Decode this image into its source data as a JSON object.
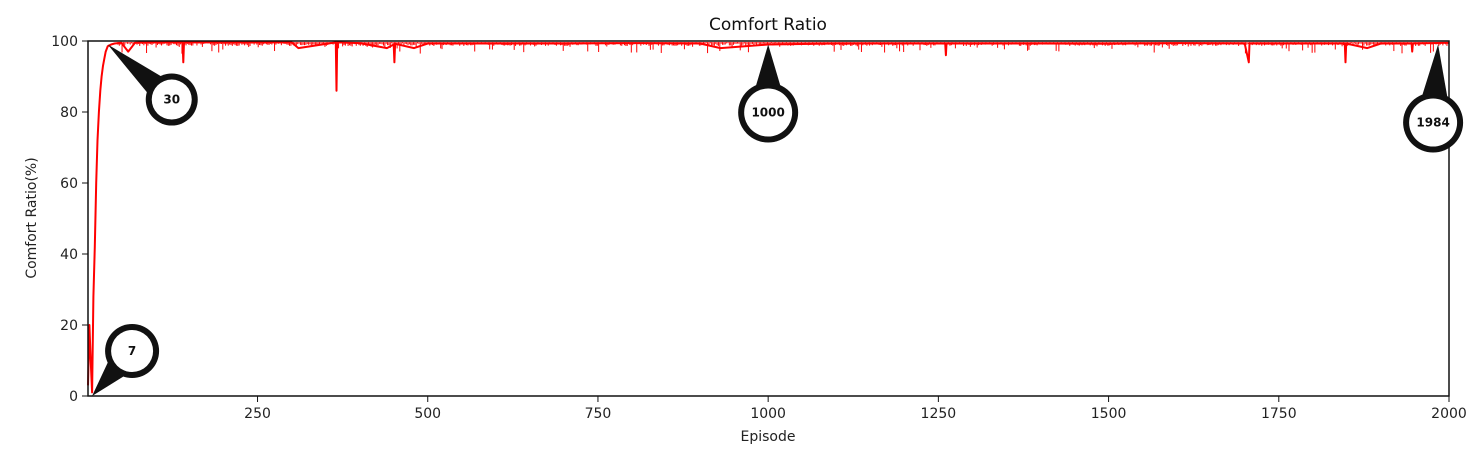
{
  "chart_data": {
    "type": "line",
    "title": "Comfort Ratio",
    "xlabel": "Episode",
    "ylabel": "Comfort Ratio(%)",
    "xlim": [
      1,
      2000
    ],
    "ylim": [
      0,
      100
    ],
    "xticks": [
      250,
      500,
      750,
      1000,
      1250,
      1500,
      1750,
      2000
    ],
    "yticks": [
      0,
      20,
      40,
      60,
      80,
      100
    ],
    "grid": false,
    "colors": {
      "series": "#ff0000",
      "marker": "#111111"
    },
    "series": [
      {
        "name": "",
        "x": [
          1,
          3,
          5,
          7,
          9,
          11,
          13,
          15,
          17,
          19,
          21,
          23,
          25,
          27,
          30,
          35,
          40,
          50,
          60,
          70,
          80,
          90,
          100,
          140,
          141,
          142,
          200,
          300,
          310,
          365,
          366,
          367,
          400,
          440,
          450,
          451,
          452,
          480,
          500,
          600,
          700,
          800,
          900,
          930,
          1000,
          1100,
          1200,
          1260,
          1261,
          1262,
          1300,
          1400,
          1500,
          1600,
          1700,
          1706,
          1707,
          1708,
          1800,
          1847,
          1848,
          1849,
          1880,
          1900,
          1945,
          1946,
          1947,
          2000
        ],
        "y": [
          3,
          20,
          10,
          1,
          28,
          42,
          60,
          72,
          80,
          86,
          90,
          93,
          95,
          97,
          98.5,
          99,
          99.3,
          99.5,
          97,
          99.5,
          99.6,
          99.6,
          99.6,
          99.6,
          94,
          99.6,
          99.6,
          99.6,
          98,
          99.6,
          86,
          99.6,
          99.4,
          98,
          99,
          94,
          99.2,
          98,
          99.3,
          99.3,
          99.3,
          99.4,
          99.3,
          98,
          99,
          99.3,
          99.3,
          99.3,
          96,
          99.3,
          99.3,
          99.3,
          99.2,
          99.4,
          99.3,
          94,
          99.3,
          99.3,
          99.3,
          99.3,
          94,
          99.3,
          98,
          99.3,
          99.3,
          97,
          99.3,
          99.5
        ]
      }
    ],
    "annotations": [
      {
        "label": "7",
        "x": 7,
        "y": 0
      },
      {
        "label": "30",
        "x": 30,
        "y": 99
      },
      {
        "label": "1000",
        "x": 1000,
        "y": 99
      },
      {
        "label": "1984",
        "x": 1984,
        "y": 99
      }
    ]
  }
}
